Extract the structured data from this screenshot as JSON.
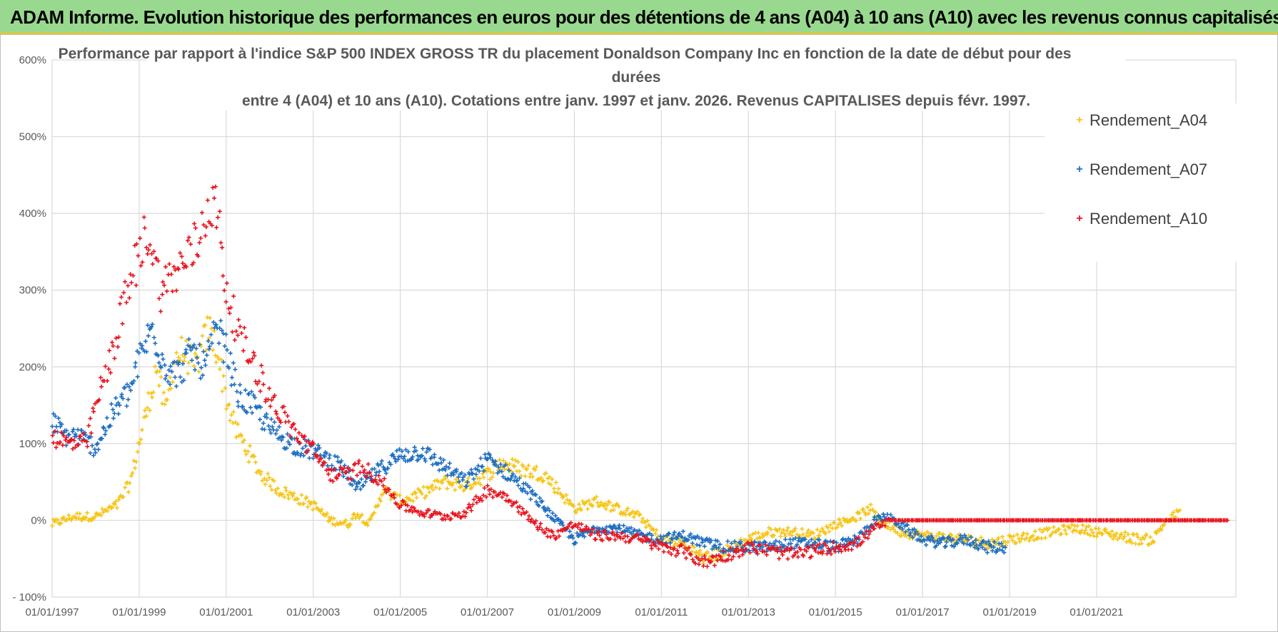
{
  "header": {
    "banner": "ADAM Informe. Evolution historique des performances en euros pour des détentions de 4 ans (A04) à 10 ans (A10) avec les revenus connus capitalisés"
  },
  "colors": {
    "banner_bg": "#99d98f",
    "banner_border": "#f5c518",
    "A04": "#f5c518",
    "A07": "#1f6fc0",
    "A10": "#e8141f",
    "grid": "#d9d9d9"
  },
  "chart_data": {
    "type": "scatter",
    "title_lines": [
      "Performance par rapport à l'indice S&P 500 INDEX GROSS TR  du placement Donaldson Company Inc en fonction de la date de début pour des",
      "durées",
      "entre 4 (A04) et 10 ans (A10).  Cotations entre janv. 1997 et janv. 2026. Revenus CAPITALISES depuis févr. 1997."
    ],
    "xlabel": "",
    "ylabel": "",
    "xlim": [
      1997.0,
      2024.2
    ],
    "ylim": [
      -100,
      600
    ],
    "x_ticks": [
      1997,
      1999,
      2001,
      2003,
      2005,
      2007,
      2009,
      2011,
      2013,
      2015,
      2017,
      2019,
      2021
    ],
    "x_tick_labels": [
      "01/01/1997",
      "01/01/1999",
      "01/01/2001",
      "01/01/2003",
      "01/01/2005",
      "01/01/2007",
      "01/01/2009",
      "01/01/2011",
      "01/01/2013",
      "01/01/2015",
      "01/01/2017",
      "01/01/2019",
      "01/01/2021"
    ],
    "y_ticks": [
      -100,
      0,
      100,
      200,
      300,
      400,
      500,
      600
    ],
    "y_tick_labels": [
      "- 100%",
      "0%",
      "100%",
      "200%",
      "300%",
      "400%",
      "500%",
      "600%"
    ],
    "grid": true,
    "legend_position": "top-right",
    "series": [
      {
        "name": "Rendement_A04",
        "color": "#f5c518",
        "x": [
          1997.0,
          1997.5,
          1998.0,
          1998.5,
          1998.8,
          1999.0,
          1999.2,
          1999.4,
          1999.6,
          1999.8,
          2000.0,
          2000.3,
          2000.6,
          2000.8,
          2001.0,
          2001.2,
          2001.5,
          2001.8,
          2002.2,
          2002.6,
          2003.0,
          2003.4,
          2003.8,
          2004.0,
          2004.3,
          2004.6,
          2005.0,
          2005.5,
          2006.0,
          2006.5,
          2007.0,
          2007.3,
          2007.6,
          2007.9,
          2008.3,
          2008.7,
          2009.0,
          2009.5,
          2010.0,
          2010.5,
          2011.0,
          2011.5,
          2012.0,
          2012.5,
          2013.0,
          2013.5,
          2014.0,
          2014.5,
          2015.0,
          2015.5,
          2015.8,
          2016.0,
          2016.5,
          2017.0,
          2017.5,
          2018.0,
          2018.5,
          2019.0,
          2019.5,
          2020.0,
          2020.5,
          2021.0,
          2021.5,
          2022.0,
          2022.3,
          2022.6,
          2022.9
        ],
        "y": [
          -5,
          5,
          5,
          20,
          50,
          100,
          150,
          200,
          140,
          210,
          220,
          200,
          250,
          220,
          160,
          120,
          90,
          60,
          40,
          30,
          20,
          0,
          -5,
          10,
          -5,
          40,
          25,
          35,
          50,
          45,
          60,
          75,
          70,
          65,
          60,
          35,
          15,
          25,
          15,
          5,
          -25,
          -30,
          -50,
          -40,
          -25,
          -15,
          -15,
          -20,
          -5,
          5,
          15,
          0,
          -15,
          -20,
          -22,
          -25,
          -30,
          -25,
          -20,
          -15,
          -10,
          -15,
          -20,
          -25,
          -25,
          0,
          10
        ]
      },
      {
        "name": "Rendement_A07",
        "color": "#1f6fc0",
        "x": [
          1997.0,
          1997.3,
          1997.6,
          1998.0,
          1998.4,
          1998.8,
          1999.0,
          1999.3,
          1999.6,
          1999.9,
          2000.2,
          2000.5,
          2000.8,
          2001.0,
          2001.3,
          2001.6,
          2002.0,
          2002.5,
          2003.0,
          2003.5,
          2003.8,
          2004.0,
          2004.5,
          2005.0,
          2005.5,
          2006.0,
          2006.5,
          2007.0,
          2007.5,
          2008.0,
          2008.5,
          2009.0,
          2009.5,
          2010.0,
          2010.5,
          2011.0,
          2011.5,
          2012.0,
          2012.5,
          2013.0,
          2013.5,
          2014.0,
          2014.5,
          2015.0,
          2015.5,
          2015.9,
          2016.2,
          2016.6,
          2017.0,
          2017.5,
          2018.0,
          2018.5,
          2018.9
        ],
        "y": [
          130,
          110,
          110,
          95,
          140,
          170,
          210,
          250,
          200,
          190,
          220,
          200,
          250,
          220,
          160,
          150,
          120,
          100,
          90,
          75,
          60,
          40,
          65,
          85,
          90,
          70,
          50,
          80,
          60,
          35,
          5,
          -25,
          -10,
          -10,
          -20,
          -25,
          -20,
          -30,
          -35,
          -35,
          -35,
          -30,
          -30,
          -35,
          -25,
          0,
          5,
          -10,
          -25,
          -30,
          -25,
          -35,
          -35
        ]
      },
      {
        "name": "Rendement_A10",
        "color": "#e8141f",
        "x": [
          1997.0,
          1997.4,
          1997.8,
          1998.0,
          1998.3,
          1998.6,
          1998.9,
          1999.2,
          1999.5,
          1999.8,
          2000.1,
          2000.4,
          2000.6,
          2000.8,
          2001.0,
          2001.3,
          2001.6,
          2002.0,
          2002.5,
          2003.0,
          2003.4,
          2003.8,
          2004.1,
          2004.5,
          2005.0,
          2005.5,
          2006.0,
          2006.5,
          2007.0,
          2007.5,
          2008.0,
          2008.5,
          2009.0,
          2009.5,
          2010.0,
          2010.5,
          2011.0,
          2011.5,
          2012.0,
          2012.5,
          2013.0,
          2013.5,
          2014.0,
          2014.5,
          2015.0,
          2015.5,
          2015.9,
          2016.3,
          2017.0,
          2018.0,
          2019.0,
          2020.0,
          2021.0,
          2022.0,
          2023.0,
          2024.0
        ],
        "y": [
          110,
          100,
          100,
          150,
          200,
          270,
          330,
          380,
          300,
          320,
          340,
          370,
          420,
          400,
          300,
          240,
          210,
          160,
          120,
          90,
          60,
          60,
          70,
          55,
          20,
          10,
          5,
          10,
          40,
          30,
          0,
          -20,
          -5,
          -20,
          -20,
          -25,
          -35,
          -40,
          -55,
          -45,
          -35,
          -40,
          -45,
          -40,
          -35,
          -30,
          -10,
          0,
          0,
          0,
          0,
          0,
          0,
          0,
          0,
          0
        ]
      }
    ]
  }
}
